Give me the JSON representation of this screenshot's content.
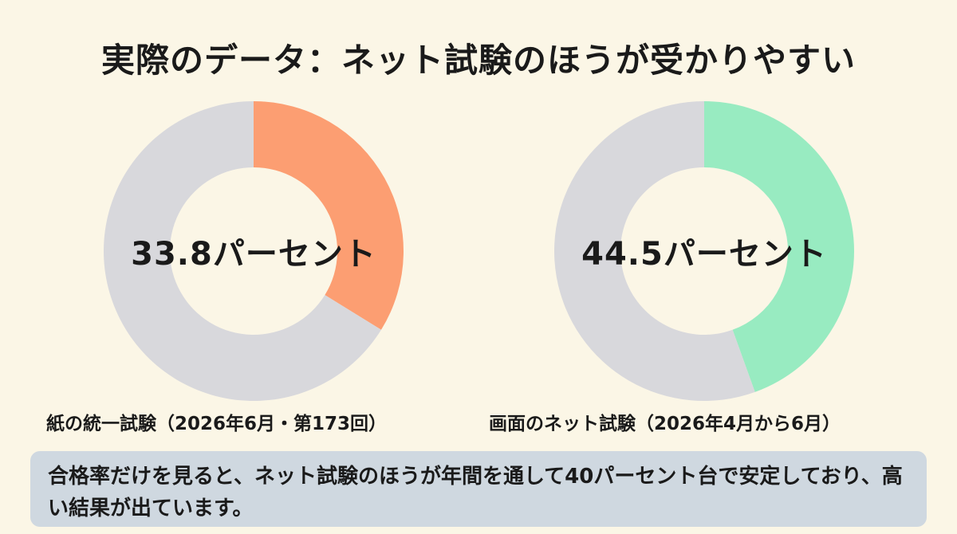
{
  "title": "実際のデータ：ネット試験のほうが受かりやすい",
  "chart_data": [
    {
      "type": "pie",
      "center_label": "33.8パーセント",
      "caption": "紙の統一試験（2026年6月・第173回）",
      "slices": [
        {
          "label": "",
          "value": 33.8,
          "color": "#fc9e72"
        },
        {
          "label": "",
          "value": 66.2,
          "color": "#d8d8dc"
        }
      ]
    },
    {
      "type": "pie",
      "center_label": "44.5パーセント",
      "caption": "画面のネット試験（2026年4月から6月）",
      "slices": [
        {
          "label": "",
          "value": 44.5,
          "color": "#98ebc1"
        },
        {
          "label": "",
          "value": 55.5,
          "color": "#d8d8dc"
        }
      ]
    }
  ],
  "summary": "合格率だけを見ると、ネット試験のほうが年間を通して40パーセント台で安定しており、高い結果が出ています。"
}
